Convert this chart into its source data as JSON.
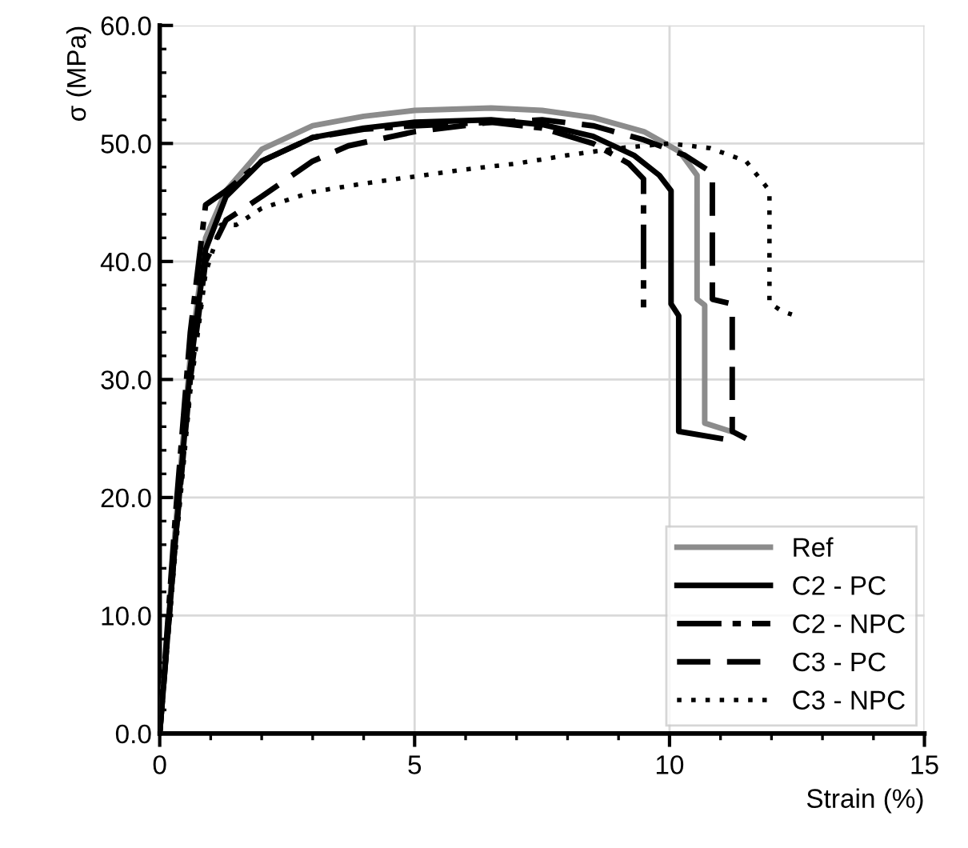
{
  "chart_data": {
    "type": "line",
    "xlabel": "Strain (%)",
    "ylabel": "σ (MPa)",
    "xlim": [
      0,
      15
    ],
    "ylim": [
      0,
      60
    ],
    "xticks": [
      0,
      5,
      10,
      15
    ],
    "yticks": [
      {
        "value": 0,
        "label": "0.0"
      },
      {
        "value": 10,
        "label": "10.0"
      },
      {
        "value": 20,
        "label": "20.0"
      },
      {
        "value": 30,
        "label": "30.0"
      },
      {
        "value": 40,
        "label": "40.0"
      },
      {
        "value": 50,
        "label": "50.0"
      },
      {
        "value": 60,
        "label": "60.0"
      }
    ],
    "grid": true,
    "legend": "bottom right",
    "marker": "none",
    "series": [
      {
        "name": "Ref",
        "color": "#8c8c8c",
        "line_style": "solid",
        "x": [
          0,
          0.3,
          0.6,
          0.9,
          1.3,
          2,
          3,
          4,
          5,
          6.5,
          7.5,
          8.5,
          9.5,
          10.2,
          10.54,
          10.54,
          10.69,
          10.69,
          11.2
        ],
        "values": [
          0,
          17,
          32,
          42,
          46,
          49.5,
          51.5,
          52.3,
          52.8,
          53,
          52.8,
          52.2,
          51,
          49.3,
          47.3,
          36.8,
          36.3,
          26.3,
          25.6
        ]
      },
      {
        "name": "C2 - PC",
        "color": "#000000",
        "line_style": "solid",
        "x": [
          0,
          0.3,
          0.6,
          0.9,
          1.3,
          2,
          3,
          4,
          5,
          6.5,
          7.5,
          8.5,
          9.3,
          9.8,
          10.03,
          10.03,
          10.18,
          10.18,
          11.0
        ],
        "values": [
          0,
          16,
          31,
          41,
          45.5,
          48.5,
          50.5,
          51.3,
          51.8,
          52,
          51.6,
          50.6,
          49,
          47.3,
          46,
          36.4,
          35.4,
          25.6,
          25
        ]
      },
      {
        "name": "C2 - NPC",
        "color": "#000000",
        "line_style": "dashdot",
        "x": [
          0,
          0.3,
          0.6,
          0.9,
          1.3,
          2,
          3,
          4,
          5,
          6.5,
          7.5,
          8.5,
          9.2,
          9.49,
          9.49
        ],
        "values": [
          0,
          18,
          34,
          44.8,
          46,
          48.5,
          50.5,
          51.2,
          51.5,
          51.8,
          51.3,
          50,
          48.3,
          47,
          36.1
        ]
      },
      {
        "name": "C3 - PC",
        "color": "#000000",
        "line_style": "dashed",
        "x": [
          0,
          0.3,
          0.6,
          0.9,
          1.3,
          2,
          3,
          3.7,
          5,
          6.5,
          7.5,
          8.5,
          9.5,
          10.3,
          10.84,
          10.84,
          11.23,
          11.23,
          11.5
        ],
        "values": [
          0,
          16,
          30,
          40,
          43.5,
          45.5,
          48.5,
          49.8,
          51,
          51.8,
          52,
          51.5,
          50.3,
          49,
          47.5,
          36.8,
          36.4,
          25.6,
          25
        ]
      },
      {
        "name": "C3 - NPC",
        "color": "#000000",
        "line_style": "dotted",
        "x": [
          0,
          0.3,
          0.6,
          0.9,
          1.2,
          1.5,
          2,
          3,
          4,
          5,
          6,
          7,
          8,
          9,
          10,
          10.8,
          11.5,
          11.96,
          11.96,
          12.2,
          12.4
        ],
        "values": [
          0,
          15,
          29,
          39,
          43.1,
          43.1,
          44.5,
          45.9,
          46.6,
          47.2,
          47.8,
          48.3,
          49,
          49.6,
          50,
          49.6,
          48.5,
          46,
          36.5,
          35.8,
          35.5
        ]
      }
    ]
  }
}
